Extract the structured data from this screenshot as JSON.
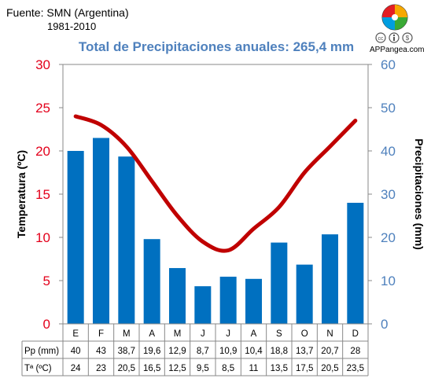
{
  "header": {
    "source": "Fuente: SMN (Argentina)",
    "period": "1981-2010",
    "title": "Total de Precipitaciones anuales: 265,4 mm",
    "brand": "APPangea.com"
  },
  "colors": {
    "bar": "#0070c0",
    "line": "#c00000",
    "left_axis": "#e3001b",
    "right_axis": "#4f81bd",
    "logo": [
      "#e31e24",
      "#f6a800",
      "#009ee0",
      "#3aaa35"
    ]
  },
  "icons": [
    "pangea-puzzle-logo-icon",
    "creative-commons-icon",
    "attribution-icon",
    "noncommercial-icon"
  ],
  "chart_data": {
    "type": "bar",
    "categories": [
      "E",
      "F",
      "M",
      "A",
      "M",
      "J",
      "J",
      "A",
      "S",
      "O",
      "N",
      "D"
    ],
    "series": [
      {
        "name": "Pp (mm)",
        "type": "bar",
        "axis": "right",
        "values": [
          40,
          43,
          38.7,
          19.6,
          12.9,
          8.7,
          10.9,
          10.4,
          18.8,
          13.7,
          20.7,
          28
        ],
        "labels": [
          "40",
          "43",
          "38,7",
          "19,6",
          "12,9",
          "8,7",
          "10,9",
          "10,4",
          "18,8",
          "13,7",
          "20,7",
          "28"
        ]
      },
      {
        "name": "Tª (ºC)",
        "type": "line",
        "axis": "left",
        "values": [
          24,
          23,
          20.5,
          16.5,
          12.5,
          9.5,
          8.5,
          11,
          13.5,
          17.5,
          20.5,
          23.5
        ],
        "labels": [
          "24",
          "23",
          "20,5",
          "16,5",
          "12,5",
          "9,5",
          "8,5",
          "11",
          "13,5",
          "17,5",
          "20,5",
          "23,5"
        ]
      }
    ],
    "y_left": {
      "label": "Temperatura (ºC)",
      "range": [
        0,
        30
      ],
      "ticks": [
        "0",
        "5",
        "10",
        "15",
        "20",
        "25",
        "30"
      ]
    },
    "y_right": {
      "label": "Precipitaciones (mm)",
      "range": [
        0,
        60
      ],
      "ticks": [
        "0",
        "10",
        "20",
        "30",
        "40",
        "50",
        "60"
      ]
    },
    "grid": false,
    "legend": "table-below"
  }
}
